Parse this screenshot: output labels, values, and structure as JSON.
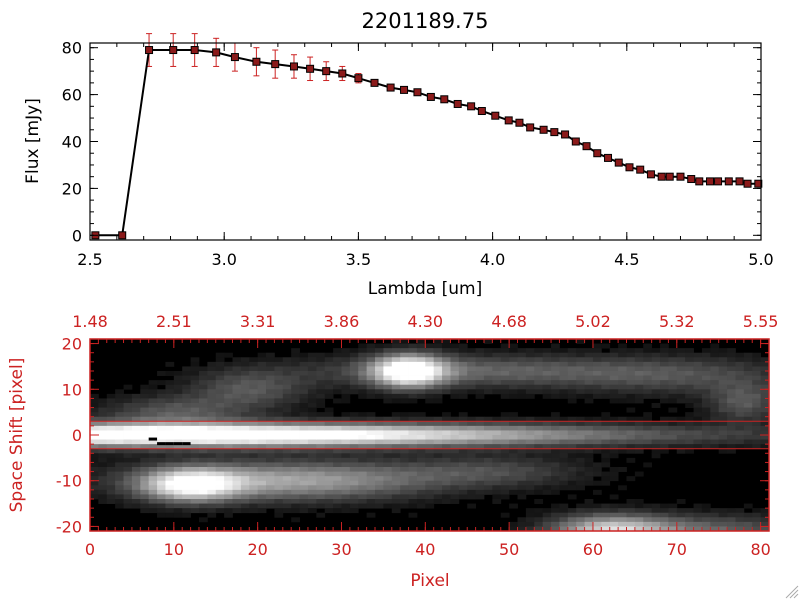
{
  "colors": {
    "axis_black": "#000000",
    "accent_red": "#cc2222",
    "marker_fill": "#8b1a1a",
    "background": "#ffffff"
  },
  "chart_data": [
    {
      "type": "line",
      "title": "2201189.75",
      "xlabel": "Lambda [um]",
      "ylabel": "Flux [mJy]",
      "xlim": [
        2.5,
        5.0
      ],
      "ylim": [
        -2,
        82
      ],
      "xticks": [
        "2.5",
        "3.0",
        "3.5",
        "4.0",
        "4.5",
        "5.0"
      ],
      "yticks": [
        "0",
        "20",
        "40",
        "60",
        "80"
      ],
      "grid": false,
      "series": [
        {
          "x": [
            2.52,
            2.62,
            2.72,
            2.81,
            2.89,
            2.97,
            3.04,
            3.12,
            3.19,
            3.26,
            3.32,
            3.38,
            3.44,
            3.5,
            3.56,
            3.62,
            3.67,
            3.72,
            3.77,
            3.82,
            3.87,
            3.92,
            3.96,
            4.01,
            4.06,
            4.1,
            4.14,
            4.19,
            4.23,
            4.27,
            4.31,
            4.35,
            4.39,
            4.43,
            4.47,
            4.51,
            4.55,
            4.59,
            4.63,
            4.66,
            4.7,
            4.74,
            4.77,
            4.81,
            4.84,
            4.88,
            4.92,
            4.95,
            4.99
          ],
          "y": [
            0,
            0,
            79,
            79,
            79,
            78,
            76,
            74,
            73,
            72,
            71,
            70,
            69,
            67,
            65,
            63,
            62,
            61,
            59,
            58,
            56,
            55,
            53,
            51,
            49,
            48,
            46,
            45,
            44,
            43,
            40,
            38,
            35,
            33,
            31,
            29,
            28,
            26,
            25,
            25,
            25,
            24,
            23,
            23,
            23,
            23,
            23,
            22,
            22
          ],
          "yerr": [
            0,
            0,
            7,
            7,
            7,
            6,
            6,
            6,
            6,
            5,
            5,
            4,
            3,
            2,
            1,
            1,
            1,
            1,
            1,
            1,
            1,
            1,
            1,
            1,
            1,
            1,
            1,
            1,
            1,
            1,
            1,
            1,
            1,
            1,
            1,
            1,
            1,
            1,
            1,
            1,
            1,
            1,
            1,
            1,
            1,
            1,
            1,
            1,
            1
          ]
        }
      ]
    },
    {
      "type": "heatmap",
      "xlabel": "Pixel",
      "ylabel": "Space Shift [pixel]",
      "xlim": [
        0,
        81
      ],
      "ylim": [
        -21,
        21
      ],
      "xticks": [
        "0",
        "10",
        "20",
        "30",
        "40",
        "50",
        "60",
        "70",
        "80"
      ],
      "yticks": [
        "-20",
        "-10",
        "0",
        "10",
        "20"
      ],
      "top_axis_ticks": [
        "1.48",
        "2.51",
        "3.31",
        "3.86",
        "4.30",
        "4.68",
        "5.02",
        "5.32",
        "5.55"
      ],
      "extraction_lines_y": [
        3,
        -3
      ],
      "colormap": "grayscale",
      "sources": [
        {
          "x": 4,
          "y": 0,
          "sx": 40,
          "sy": 1.8,
          "peak": 0.95
        },
        {
          "x": 20,
          "y": 0,
          "sx": 25,
          "sy": 1.8,
          "peak": 0.3
        },
        {
          "x": 38,
          "y": 14,
          "sx": 3,
          "sy": 2.5,
          "peak": 1.0
        },
        {
          "x": 45,
          "y": 14,
          "sx": 14,
          "sy": 2.5,
          "peak": 0.35
        },
        {
          "x": 70,
          "y": 13,
          "sx": 10,
          "sy": 3,
          "peak": 0.25
        },
        {
          "x": 12,
          "y": -11,
          "sx": 4,
          "sy": 2.5,
          "peak": 0.8
        },
        {
          "x": 15,
          "y": -10,
          "sx": 10,
          "sy": 3,
          "peak": 0.3
        },
        {
          "x": 28,
          "y": -10,
          "sx": 10,
          "sy": 3,
          "peak": 0.45
        },
        {
          "x": 48,
          "y": -8,
          "sx": 8,
          "sy": 2.5,
          "peak": 0.25
        },
        {
          "x": 62,
          "y": -21,
          "sx": 5,
          "sy": 2.5,
          "peak": 0.75
        },
        {
          "x": 74,
          "y": -21,
          "sx": 8,
          "sy": 2.5,
          "peak": 0.35
        },
        {
          "x": 78,
          "y": 7,
          "sx": 3,
          "sy": 3,
          "peak": 0.3
        },
        {
          "x": 10,
          "y": 5,
          "sx": 6,
          "sy": 2.5,
          "peak": 0.3
        },
        {
          "x": 19,
          "y": 10,
          "sx": 5,
          "sy": 3,
          "peak": 0.3
        }
      ],
      "bad_pixels": [
        [
          7,
          -1
        ],
        [
          8,
          -2
        ],
        [
          9,
          -2
        ],
        [
          10,
          -2
        ],
        [
          11,
          -2
        ]
      ]
    }
  ]
}
